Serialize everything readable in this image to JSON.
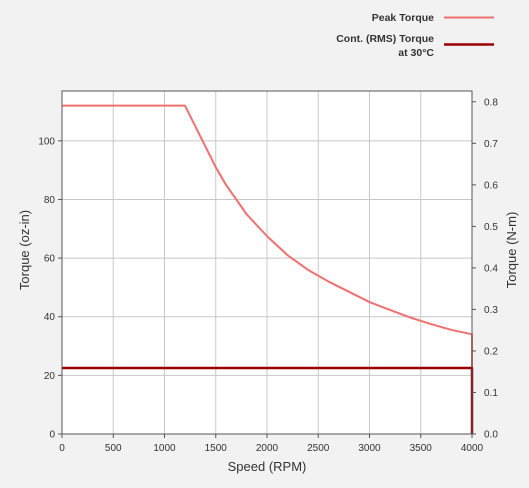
{
  "chart_data": {
    "type": "line",
    "xlabel": "Speed (RPM)",
    "ylabel": "Torque (oz-in)",
    "y2label": "Torque (N-m)",
    "xlim": [
      0,
      4000
    ],
    "ylim": [
      0,
      117
    ],
    "y2lim": [
      0,
      0.826
    ],
    "grid": true,
    "legend_position": "top-right",
    "x_ticks": [
      0,
      500,
      1000,
      1500,
      2000,
      2500,
      3000,
      3500,
      4000
    ],
    "y_ticks": [
      0,
      20,
      40,
      60,
      80,
      100
    ],
    "y2_ticks": [
      "0.0",
      "0.1",
      "0.2",
      "0.3",
      "0.4",
      "0.5",
      "0.6",
      "0.7",
      "0.8"
    ],
    "series": [
      {
        "name": "Peak Torque",
        "color": "#f07070",
        "x": [
          0,
          1200,
          1300,
          1400,
          1500,
          1600,
          1800,
          2000,
          2200,
          2400,
          2600,
          2800,
          3000,
          3200,
          3400,
          3600,
          3800,
          4000,
          4000
        ],
        "y": [
          112,
          112,
          105,
          98,
          91,
          85,
          75,
          67.5,
          61,
          56,
          52,
          48.5,
          45,
          42.3,
          39.7,
          37.5,
          35.5,
          34,
          0
        ]
      },
      {
        "name": "Cont. (RMS) Torque at 30°C",
        "color": "#990000",
        "x": [
          0,
          4000,
          4000
        ],
        "y": [
          22.5,
          22.5,
          0
        ]
      }
    ]
  },
  "legend": {
    "peak_label": "Peak Torque",
    "cont_label_line1": "Cont. (RMS) Torque",
    "cont_label_line2": "at 30°C"
  }
}
